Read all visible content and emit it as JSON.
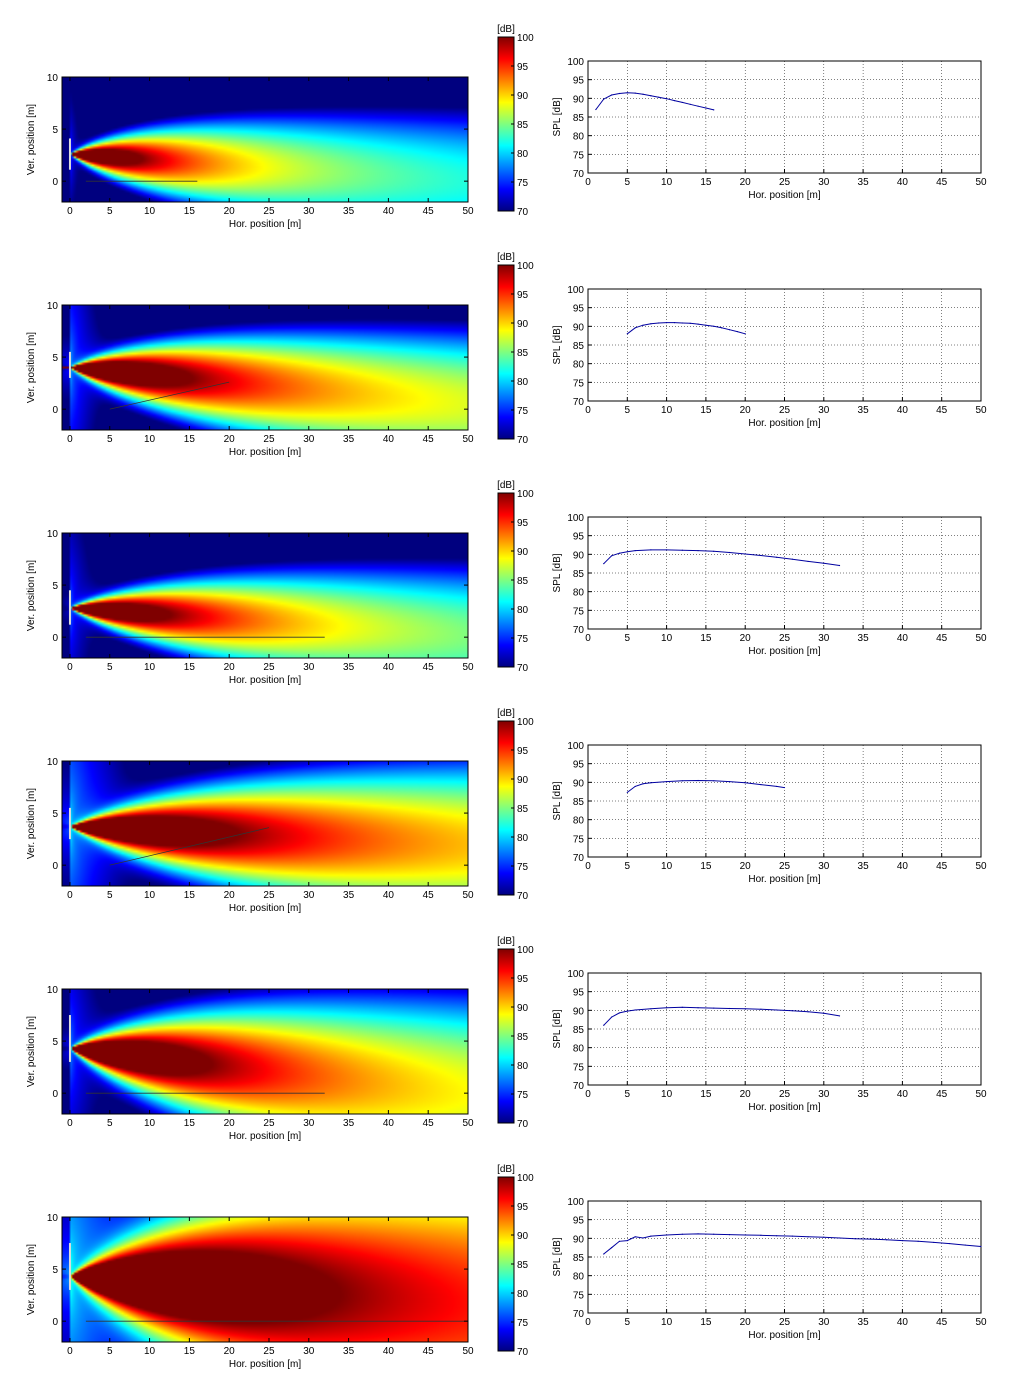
{
  "figure": {
    "colorbar_unit": "[dB]",
    "colormap": [
      "#00007f",
      "#0000ff",
      "#007fff",
      "#00ffff",
      "#7fff7f",
      "#ffff00",
      "#ff7f00",
      "#ff0000",
      "#7f0000"
    ]
  },
  "chart_data": [
    {
      "type": "heatmap",
      "row": 1,
      "xlabel": "Hor. position [m]",
      "ylabel": "Ver. position [m]",
      "xlim": [
        -1,
        50
      ],
      "ylim": [
        -2,
        10
      ],
      "xticks": [
        0,
        5,
        10,
        15,
        20,
        25,
        30,
        35,
        40,
        45,
        50
      ],
      "yticks": [
        0,
        5,
        10
      ],
      "source": {
        "x": 0,
        "y": 2.6,
        "top": 4.1,
        "bottom": 1.1,
        "strength": 1.0,
        "aim_deg": -3,
        "beam_width": 0.25,
        "decay": 0.032,
        "base_dB": 76
      },
      "audience_line": [
        [
          2,
          0
        ],
        [
          16,
          0
        ]
      ],
      "colorbar": {
        "label": "[dB]",
        "ticks": [
          70,
          75,
          80,
          85,
          90,
          95,
          100
        ],
        "range": [
          70,
          100
        ]
      }
    },
    {
      "type": "line",
      "row": 1,
      "xlabel": "Hor. position [m]",
      "ylabel": "SPL [dB]",
      "xlim": [
        0,
        50
      ],
      "ylim": [
        70,
        100
      ],
      "grid": true,
      "xticks": [
        0,
        5,
        10,
        15,
        20,
        25,
        30,
        35,
        40,
        45,
        50
      ],
      "yticks": [
        70,
        75,
        80,
        85,
        90,
        95,
        100
      ],
      "series": [
        {
          "x": [
            1,
            2,
            3,
            4,
            5,
            6,
            7,
            8,
            9,
            10,
            11,
            12,
            13,
            14,
            15,
            16
          ],
          "values": [
            87,
            89.8,
            90.9,
            91.3,
            91.5,
            91.4,
            91.1,
            90.7,
            90.3,
            89.9,
            89.4,
            88.9,
            88.4,
            87.9,
            87.4,
            86.9
          ]
        }
      ]
    },
    {
      "type": "heatmap",
      "row": 2,
      "xlabel": "Hor. position [m]",
      "ylabel": "Ver. position [m]",
      "xlim": [
        -1,
        50
      ],
      "ylim": [
        -2,
        10
      ],
      "xticks": [
        0,
        5,
        10,
        15,
        20,
        25,
        30,
        35,
        40,
        45,
        50
      ],
      "yticks": [
        0,
        5,
        10
      ],
      "source": {
        "x": 0,
        "y": 4.0,
        "top": 5.5,
        "bottom": 3.0,
        "strength": 1.05,
        "aim_deg": -4,
        "beam_width": 0.22,
        "decay": 0.028,
        "base_dB": 80
      },
      "audience_line": [
        [
          5,
          0
        ],
        [
          20,
          2.6
        ]
      ],
      "colorbar": {
        "label": "[dB]",
        "ticks": [
          70,
          75,
          80,
          85,
          90,
          95,
          100
        ],
        "range": [
          70,
          100
        ]
      }
    },
    {
      "type": "line",
      "row": 2,
      "xlabel": "Hor. position [m]",
      "ylabel": "SPL [dB]",
      "xlim": [
        0,
        50
      ],
      "ylim": [
        70,
        100
      ],
      "grid": true,
      "xticks": [
        0,
        5,
        10,
        15,
        20,
        25,
        30,
        35,
        40,
        45,
        50
      ],
      "yticks": [
        70,
        75,
        80,
        85,
        90,
        95,
        100
      ],
      "series": [
        {
          "x": [
            5,
            6,
            7,
            8,
            9,
            10,
            11,
            12,
            13,
            14,
            15,
            16,
            17,
            18,
            19,
            20
          ],
          "values": [
            88,
            89.6,
            90.3,
            90.7,
            90.9,
            91,
            91,
            90.9,
            90.8,
            90.6,
            90.3,
            90,
            89.6,
            89.1,
            88.6,
            88
          ]
        }
      ]
    },
    {
      "type": "heatmap",
      "row": 3,
      "xlabel": "Hor. position [m]",
      "ylabel": "Ver. position [m]",
      "xlim": [
        -1,
        50
      ],
      "ylim": [
        -2,
        10
      ],
      "xticks": [
        0,
        5,
        10,
        15,
        20,
        25,
        30,
        35,
        40,
        45,
        50
      ],
      "yticks": [
        0,
        5,
        10
      ],
      "source": {
        "x": 0,
        "y": 2.8,
        "top": 4.5,
        "bottom": 1.2,
        "strength": 1.0,
        "aim_deg": -3,
        "beam_width": 0.2,
        "decay": 0.022,
        "base_dB": 78
      },
      "audience_line": [
        [
          2,
          0
        ],
        [
          32,
          0
        ]
      ],
      "colorbar": {
        "label": "[dB]",
        "ticks": [
          70,
          75,
          80,
          85,
          90,
          95,
          100
        ],
        "range": [
          70,
          100
        ]
      }
    },
    {
      "type": "line",
      "row": 3,
      "xlabel": "Hor. position [m]",
      "ylabel": "SPL [dB]",
      "xlim": [
        0,
        50
      ],
      "ylim": [
        70,
        100
      ],
      "grid": true,
      "xticks": [
        0,
        5,
        10,
        15,
        20,
        25,
        30,
        35,
        40,
        45,
        50
      ],
      "yticks": [
        70,
        75,
        80,
        85,
        90,
        95,
        100
      ],
      "series": [
        {
          "x": [
            2,
            3,
            4,
            5,
            6,
            8,
            10,
            12,
            14,
            16,
            18,
            20,
            22,
            24,
            26,
            28,
            30,
            32
          ],
          "values": [
            87.5,
            89.6,
            90.3,
            90.7,
            91,
            91.2,
            91.2,
            91.1,
            91,
            90.8,
            90.5,
            90.1,
            89.7,
            89.2,
            88.7,
            88.1,
            87.6,
            87
          ]
        }
      ]
    },
    {
      "type": "heatmap",
      "row": 4,
      "xlabel": "Hor. position [m]",
      "ylabel": "Ver. position [m]",
      "xlim": [
        -1,
        50
      ],
      "ylim": [
        -2,
        10
      ],
      "xticks": [
        0,
        5,
        10,
        15,
        20,
        25,
        30,
        35,
        40,
        45,
        50
      ],
      "yticks": [
        0,
        5,
        10
      ],
      "source": {
        "x": 0,
        "y": 3.7,
        "top": 5.5,
        "bottom": 2.5,
        "strength": 1.05,
        "aim_deg": -2,
        "beam_width": 0.2,
        "decay": 0.018,
        "base_dB": 82
      },
      "audience_line": [
        [
          5,
          0
        ],
        [
          25,
          3.6
        ]
      ],
      "colorbar": {
        "label": "[dB]",
        "ticks": [
          70,
          75,
          80,
          85,
          90,
          95,
          100
        ],
        "range": [
          70,
          100
        ]
      }
    },
    {
      "type": "line",
      "row": 4,
      "xlabel": "Hor. position [m]",
      "ylabel": "SPL [dB]",
      "xlim": [
        0,
        50
      ],
      "ylim": [
        70,
        100
      ],
      "grid": true,
      "xticks": [
        0,
        5,
        10,
        15,
        20,
        25,
        30,
        35,
        40,
        45,
        50
      ],
      "yticks": [
        70,
        75,
        80,
        85,
        90,
        95,
        100
      ],
      "series": [
        {
          "x": [
            5,
            6,
            7,
            8,
            10,
            12,
            14,
            16,
            18,
            20,
            22,
            24,
            25
          ],
          "values": [
            87.3,
            88.9,
            89.6,
            89.9,
            90.2,
            90.4,
            90.5,
            90.4,
            90.2,
            89.9,
            89.4,
            88.9,
            88.6
          ]
        }
      ]
    },
    {
      "type": "heatmap",
      "row": 5,
      "xlabel": "Hor. position [m]",
      "ylabel": "Ver. position [m]",
      "xlim": [
        -1,
        50
      ],
      "ylim": [
        -2,
        10
      ],
      "xticks": [
        0,
        5,
        10,
        15,
        20,
        25,
        30,
        35,
        40,
        45,
        50
      ],
      "yticks": [
        0,
        5,
        10
      ],
      "source": {
        "x": 0,
        "y": 4.3,
        "top": 7.5,
        "bottom": 3.0,
        "strength": 1.1,
        "aim_deg": -5,
        "beam_width": 0.26,
        "decay": 0.02,
        "base_dB": 79
      },
      "audience_line": [
        [
          2,
          0
        ],
        [
          32,
          0
        ]
      ],
      "colorbar": {
        "label": "[dB]",
        "ticks": [
          70,
          75,
          80,
          85,
          90,
          95,
          100
        ],
        "range": [
          70,
          100
        ]
      }
    },
    {
      "type": "line",
      "row": 5,
      "xlabel": "Hor. position [m]",
      "ylabel": "SPL [dB]",
      "xlim": [
        0,
        50
      ],
      "ylim": [
        70,
        100
      ],
      "grid": true,
      "xticks": [
        0,
        5,
        10,
        15,
        20,
        25,
        30,
        35,
        40,
        45,
        50
      ],
      "yticks": [
        70,
        75,
        80,
        85,
        90,
        95,
        100
      ],
      "series": [
        {
          "x": [
            2,
            3,
            4,
            5,
            6,
            8,
            10,
            12,
            14,
            16,
            18,
            20,
            22,
            24,
            26,
            28,
            30,
            32
          ],
          "values": [
            86,
            88.2,
            89.3,
            89.8,
            90.1,
            90.4,
            90.7,
            90.8,
            90.7,
            90.6,
            90.5,
            90.4,
            90.3,
            90.1,
            89.9,
            89.6,
            89.2,
            88.5
          ]
        }
      ]
    },
    {
      "type": "heatmap",
      "row": 6,
      "xlabel": "Hor. position [m]",
      "ylabel": "Ver. position [m]",
      "xlim": [
        -1,
        50
      ],
      "ylim": [
        -2,
        10
      ],
      "xticks": [
        0,
        5,
        10,
        15,
        20,
        25,
        30,
        35,
        40,
        45,
        50
      ],
      "yticks": [
        0,
        5,
        10
      ],
      "source": {
        "x": 0,
        "y": 4.3,
        "top": 7.5,
        "bottom": 3.0,
        "strength": 1.15,
        "aim_deg": -3,
        "beam_width": 0.3,
        "decay": 0.012,
        "base_dB": 84
      },
      "audience_line": [
        [
          2,
          0
        ],
        [
          50,
          0
        ]
      ],
      "colorbar": {
        "label": "[dB]",
        "ticks": [
          70,
          75,
          80,
          85,
          90,
          95,
          100
        ],
        "range": [
          70,
          100
        ]
      }
    },
    {
      "type": "line",
      "row": 6,
      "xlabel": "Hor. position [m]",
      "ylabel": "SPL [dB]",
      "xlim": [
        0,
        50
      ],
      "ylim": [
        70,
        100
      ],
      "grid": true,
      "xticks": [
        0,
        5,
        10,
        15,
        20,
        25,
        30,
        35,
        40,
        45,
        50
      ],
      "yticks": [
        70,
        75,
        80,
        85,
        90,
        95,
        100
      ],
      "series": [
        {
          "x": [
            2,
            3,
            4,
            5,
            6,
            7,
            8,
            10,
            12,
            14,
            16,
            18,
            20,
            22,
            24,
            26,
            28,
            30,
            32,
            34,
            36,
            38,
            40,
            42,
            44,
            46,
            48,
            50
          ],
          "values": [
            85.8,
            87.5,
            89.2,
            89.4,
            90.4,
            90.1,
            90.6,
            90.9,
            91.1,
            91.2,
            91.1,
            91,
            90.9,
            90.8,
            90.7,
            90.6,
            90.4,
            90.3,
            90.1,
            89.9,
            89.8,
            89.6,
            89.4,
            89.2,
            88.9,
            88.6,
            88.2,
            87.8
          ]
        }
      ]
    }
  ]
}
